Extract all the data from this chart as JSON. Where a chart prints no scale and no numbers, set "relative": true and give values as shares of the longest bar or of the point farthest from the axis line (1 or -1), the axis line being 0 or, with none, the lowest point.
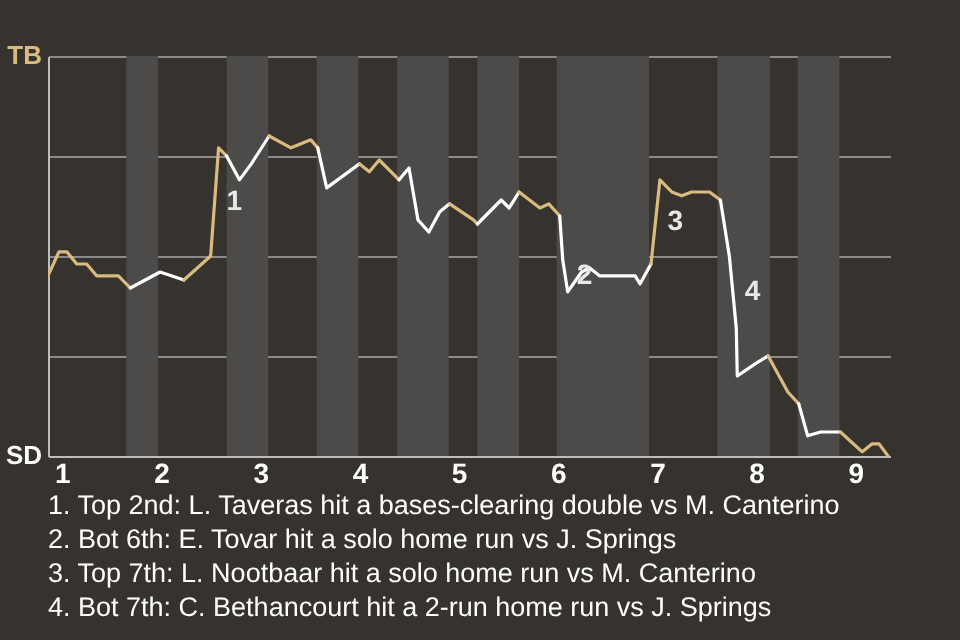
{
  "chart_data": {
    "type": "line",
    "relative": true,
    "xlim": [
      0.86,
      9.35
    ],
    "xticks": [
      1,
      2,
      3,
      4,
      5,
      6,
      7,
      8,
      9
    ],
    "grid": "y",
    "series": [
      {
        "color": "#d9bb80",
        "x": [
          0.86,
          0.97,
          1.05,
          1.15,
          1.25,
          1.35,
          1.57,
          1.69
        ],
        "values": [
          0.563,
          0.638,
          0.638,
          0.6,
          0.6,
          0.563,
          0.563,
          0.525
        ]
      },
      {
        "color": "#ffffff",
        "x": [
          1.69,
          1.99,
          2.23
        ],
        "values": [
          0.525,
          0.575,
          0.55
        ]
      },
      {
        "color": "#d9bb80",
        "x": [
          2.23,
          2.5,
          2.58,
          2.66
        ],
        "values": [
          0.55,
          0.625,
          0.963,
          0.938
        ]
      },
      {
        "color": "#ffffff",
        "x": [
          2.66,
          2.79,
          2.91,
          3.09
        ],
        "values": [
          0.938,
          0.863,
          0.913,
          1
        ]
      },
      {
        "color": "#d9bb80",
        "x": [
          3.09,
          3.31,
          3.51,
          3.58
        ],
        "values": [
          1,
          0.963,
          0.988,
          0.963
        ]
      },
      {
        "color": "#ffffff",
        "x": [
          3.58,
          3.67,
          4.0
        ],
        "values": [
          0.963,
          0.838,
          0.913
        ]
      },
      {
        "color": "#d9bb80",
        "x": [
          4.0,
          4.1,
          4.2,
          4.4
        ],
        "values": [
          0.913,
          0.888,
          0.925,
          0.863
        ]
      },
      {
        "color": "#ffffff",
        "x": [
          4.4,
          4.5,
          4.59,
          4.7,
          4.81,
          4.91
        ],
        "values": [
          0.863,
          0.9,
          0.738,
          0.7,
          0.763,
          0.788
        ]
      },
      {
        "color": "#d9bb80",
        "x": [
          4.91,
          5.15,
          5.19
        ],
        "values": [
          0.788,
          0.738,
          0.725
        ]
      },
      {
        "color": "#ffffff",
        "x": [
          5.19,
          5.43,
          5.51,
          5.61
        ],
        "values": [
          0.725,
          0.8,
          0.775,
          0.825
        ]
      },
      {
        "color": "#d9bb80",
        "x": [
          5.61,
          5.82,
          5.91,
          6.02
        ],
        "values": [
          0.825,
          0.775,
          0.788,
          0.75
        ]
      },
      {
        "color": "#ffffff",
        "x": [
          6.02,
          6.05,
          6.1,
          6.24,
          6.32,
          6.42,
          6.78,
          6.83,
          6.94
        ],
        "values": [
          0.75,
          0.613,
          0.513,
          0.575,
          0.588,
          0.563,
          0.563,
          0.538,
          0.6
        ]
      },
      {
        "color": "#d9bb80",
        "x": [
          6.94,
          7.03,
          7.15,
          7.25,
          7.35,
          7.53,
          7.64
        ],
        "values": [
          0.6,
          0.863,
          0.825,
          0.813,
          0.825,
          0.825,
          0.8
        ]
      },
      {
        "color": "#ffffff",
        "x": [
          7.64,
          7.73,
          7.8,
          7.81,
          7.99,
          8.12
        ],
        "values": [
          0.8,
          0.625,
          0.4,
          0.25,
          0.288,
          0.313
        ]
      },
      {
        "color": "#d9bb80",
        "x": [
          8.12,
          8.32,
          8.43
        ],
        "values": [
          0.313,
          0.2,
          0.163
        ]
      },
      {
        "color": "#ffffff",
        "x": [
          8.43,
          8.52,
          8.65,
          8.85
        ],
        "values": [
          0.163,
          0.063,
          0.075,
          0.075
        ]
      },
      {
        "color": "#d9bb80",
        "x": [
          8.85,
          9.07,
          9.17,
          9.24,
          9.33
        ],
        "values": [
          0.075,
          0.013,
          0.038,
          0.038,
          0
        ]
      }
    ],
    "bands": [
      {
        "axis": "x",
        "from": 1.65,
        "to": 1.97,
        "color": "#4d4b49"
      },
      {
        "axis": "x",
        "from": 2.66,
        "to": 3.08,
        "color": "#4d4b49"
      },
      {
        "axis": "x",
        "from": 3.57,
        "to": 3.99,
        "color": "#4d4b49"
      },
      {
        "axis": "x",
        "from": 4.38,
        "to": 4.9,
        "color": "#4d4b49"
      },
      {
        "axis": "x",
        "from": 5.19,
        "to": 5.61,
        "color": "#4d4b49"
      },
      {
        "axis": "x",
        "from": 5.99,
        "to": 6.92,
        "color": "#4d4b49"
      },
      {
        "axis": "x",
        "from": 7.61,
        "to": 8.14,
        "color": "#4d4b49"
      },
      {
        "axis": "x",
        "from": 8.42,
        "to": 8.84,
        "color": "#4d4b49"
      }
    ],
    "annotations": [
      "TB",
      "SD",
      {
        "text": "1",
        "x": 2.54,
        "y": 0.794
      },
      {
        "text": "2",
        "x": 6.07,
        "y": 0.563
      },
      {
        "text": "3",
        "x": 6.985,
        "y": 0.731
      },
      {
        "text": "4",
        "x": 7.765,
        "y": 0.513
      },
      "1. Top 2nd: L. Taveras hit a bases-clearing double vs M. Canterino",
      "2. Bot 6th: E. Tovar hit a solo home run vs J. Springs",
      "3. Top 7th: L. Nootbaar hit a solo home run vs M. Canterino",
      "4. Bot 7th: C. Bethancourt hit a 2-run home run vs J. Springs"
    ]
  }
}
